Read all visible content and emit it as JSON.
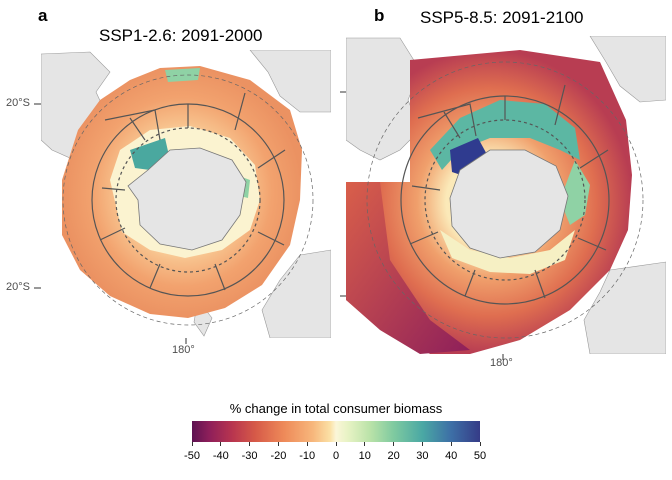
{
  "panels": [
    {
      "letter": "a",
      "title": "SSP1-2.6: 2091-2000",
      "lat_labels": [
        "20°S",
        "20°S"
      ],
      "lon_label": "180°"
    },
    {
      "letter": "b",
      "title": "SSP5-8.5: 2091-2100",
      "lon_label": "180°"
    }
  ],
  "legend": {
    "title": "% change in total consumer biomass",
    "ticks": [
      "-50",
      "-40",
      "-30",
      "-20",
      "-10",
      "0",
      "10",
      "20",
      "30",
      "40",
      "50"
    ],
    "range": [
      -50,
      50
    ]
  },
  "colors": {
    "land": "#e5e5e5",
    "land_stroke": "#999999",
    "ocean_dominant_a": "#f4a86f",
    "ocean_dominant_b": "#e37a55",
    "positive_high": "#2f3b8f",
    "positive_mid": "#5cb7a3",
    "neutral": "#fbf6d8",
    "region_lines": "#555555"
  }
}
